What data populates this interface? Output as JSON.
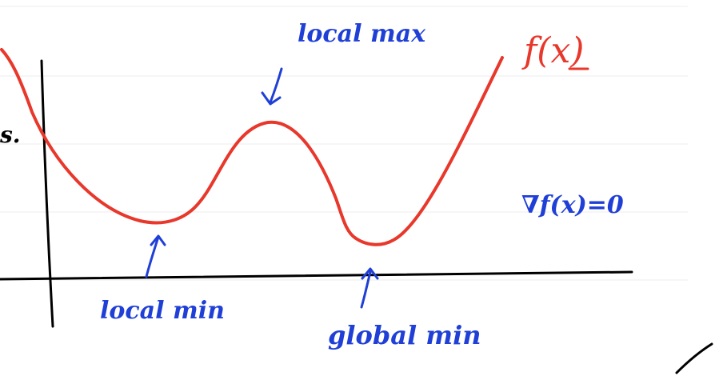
{
  "diagram": {
    "function_label": "f(x)",
    "gradient_condition": "∇f(x)=0",
    "margin_fragment": "s.",
    "annotations": {
      "local_max": "local max",
      "local_min": "local min",
      "global_min": "global min"
    },
    "colors": {
      "curve": "#e8372b",
      "annotation_ink": "#1f3fd6",
      "axes": "#000000",
      "ruled_lines": "#eeeeee"
    }
  }
}
